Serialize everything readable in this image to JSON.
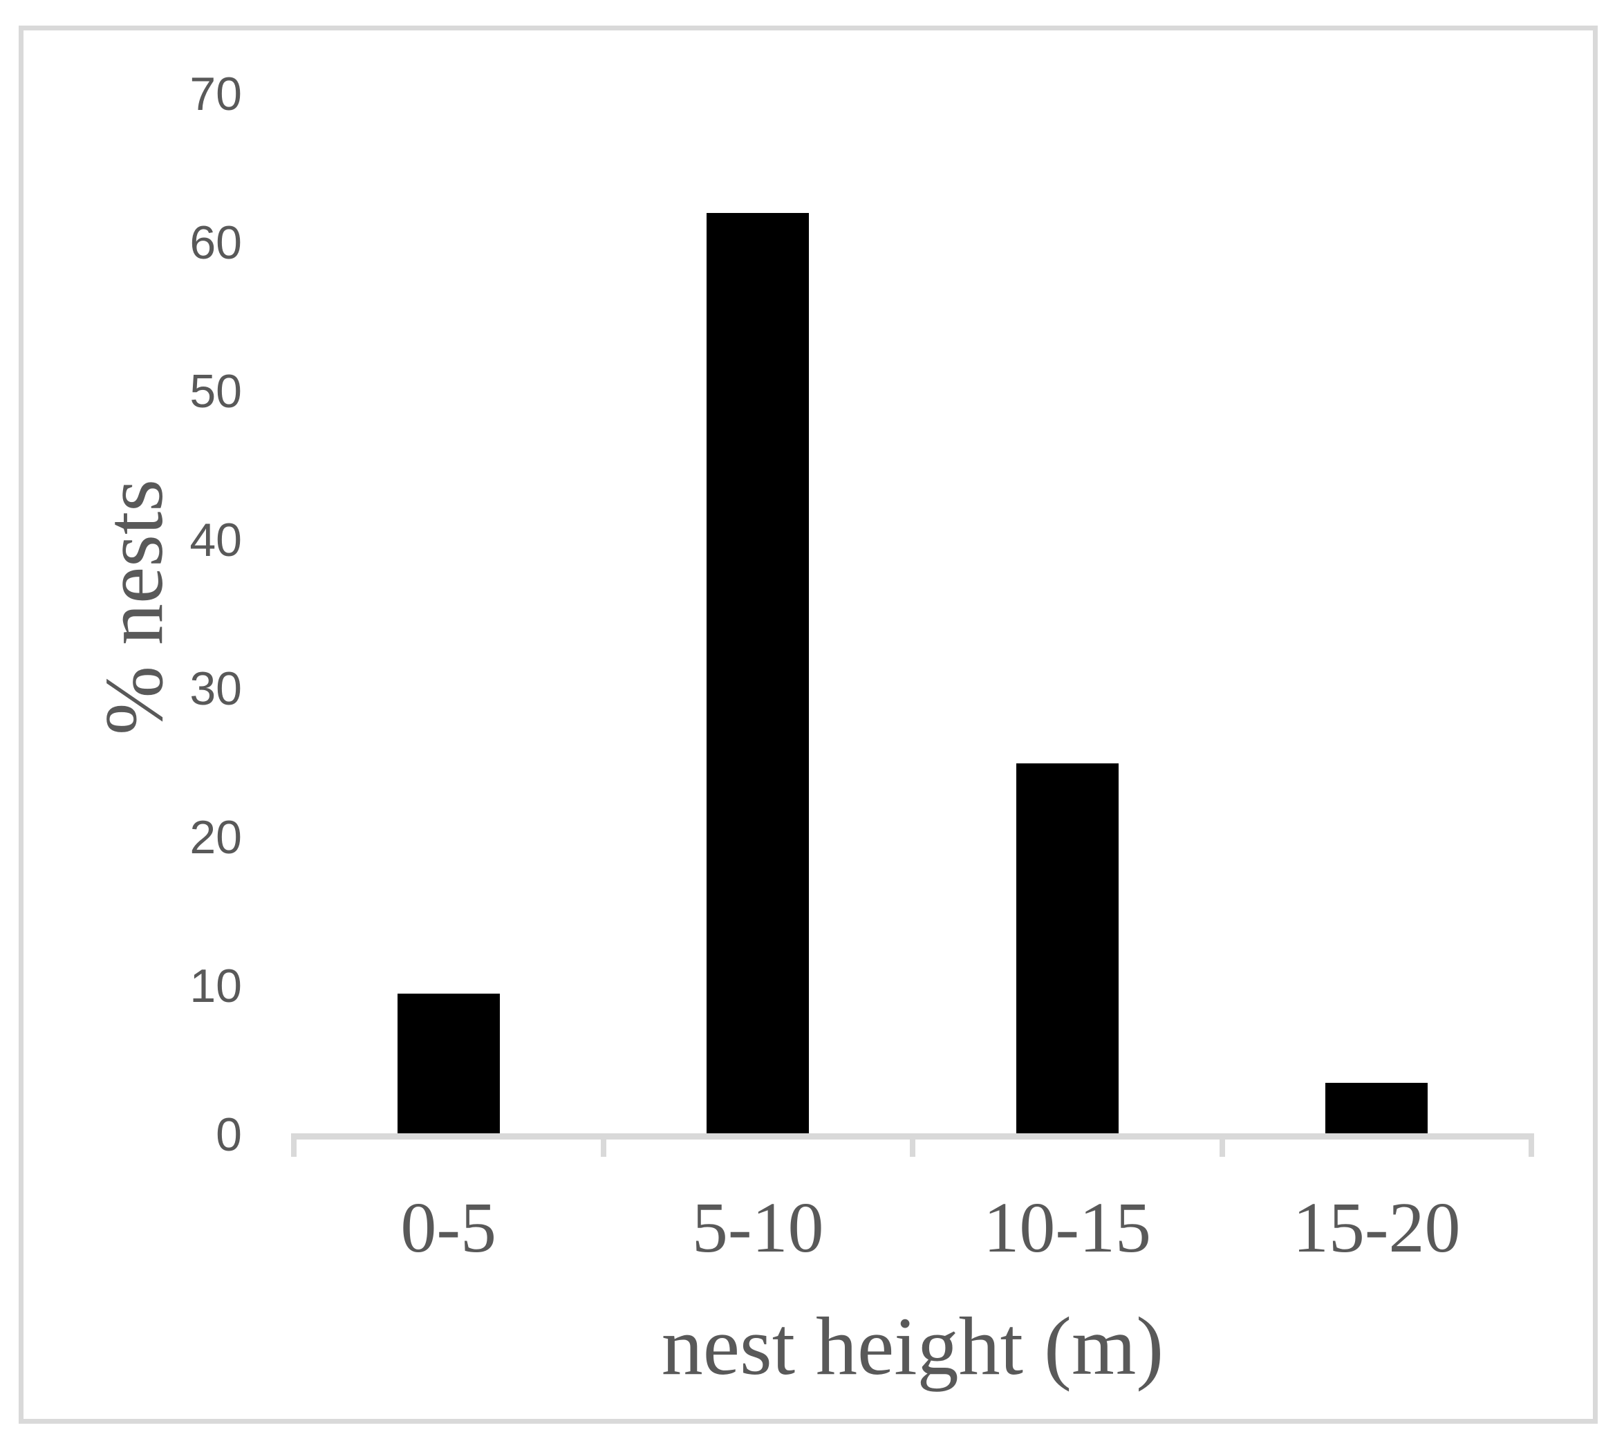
{
  "figure": {
    "background_color": "#ffffff",
    "border_color": "#d9d9d9"
  },
  "chart_data": {
    "type": "bar",
    "title": "",
    "categories": [
      "0-5",
      "5-10",
      "10-15",
      "15-20"
    ],
    "values": [
      9.5,
      62,
      25,
      3.5
    ],
    "xlabel": "nest height (m)",
    "ylabel": "% nests",
    "ylim": [
      0,
      70
    ],
    "yticks": [
      0,
      10,
      20,
      30,
      40,
      50,
      60,
      70
    ],
    "grid": false,
    "legend": "none",
    "bar_color": "#000000",
    "axis_line_color": "#d9d9d9",
    "text_color": "#595959"
  }
}
